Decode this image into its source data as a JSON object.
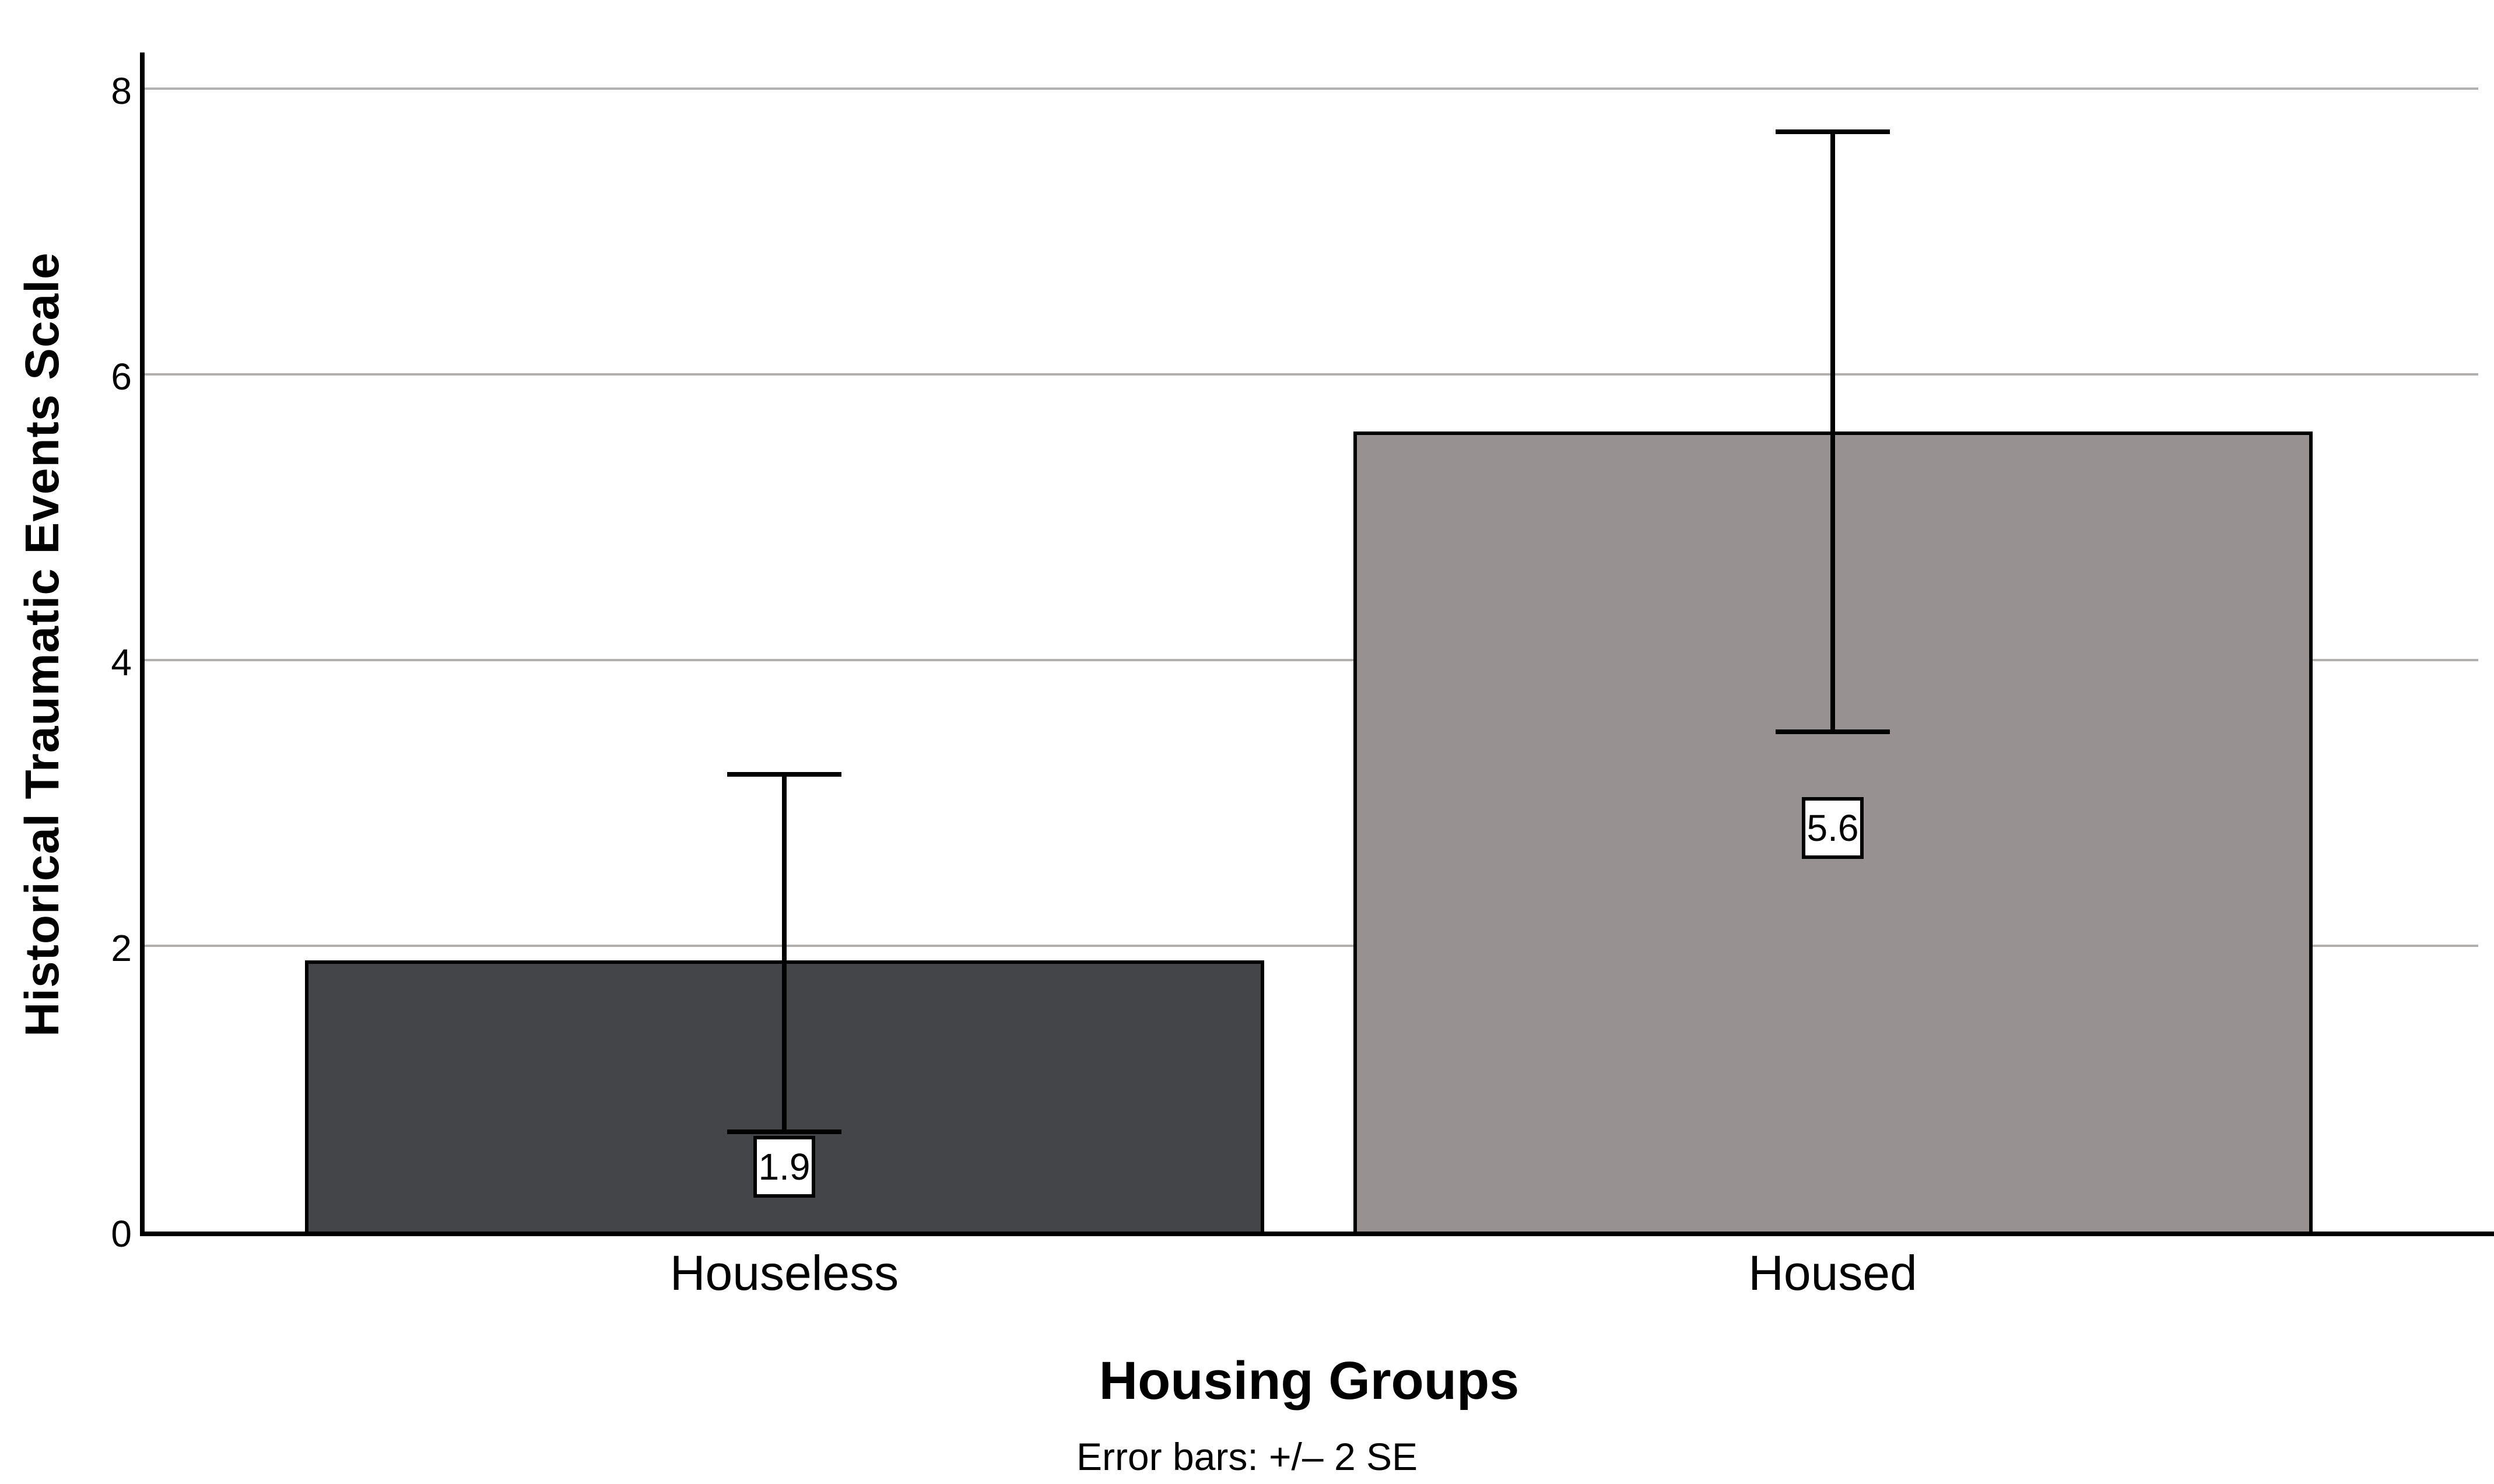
{
  "chart_data": {
    "type": "bar",
    "title": "",
    "categories": [
      "Houseless",
      "Housed"
    ],
    "values": [
      1.9,
      5.6
    ],
    "value_labels": [
      "1.9",
      "5.6"
    ],
    "error_bars": {
      "description": "Error bars: +/– 2 SE",
      "lower": [
        0.7,
        3.5
      ],
      "upper": [
        3.2,
        7.7
      ]
    },
    "ylabel": "Historical Traumatic Events Scale",
    "xlabel": "Housing Groups",
    "footnote": "Error bars: +/– 2 SE",
    "yticks": [
      0,
      2,
      4,
      6,
      8
    ],
    "ylim": [
      0,
      8.3
    ],
    "grid": "horizontal-gridlines-on",
    "legend": "none",
    "bar_colors": [
      "#434549",
      "#989192"
    ],
    "bar_border_color": "#000000",
    "gridline_color": "#b1b0af",
    "axis_color": "#000000",
    "value_box_bg": "#ffffff"
  }
}
